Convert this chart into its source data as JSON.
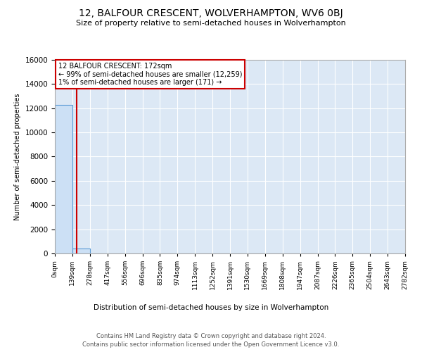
{
  "title": "12, BALFOUR CRESCENT, WOLVERHAMPTON, WV6 0BJ",
  "subtitle": "Size of property relative to semi-detached houses in Wolverhampton",
  "xlabel": "Distribution of semi-detached houses by size in Wolverhampton",
  "ylabel": "Number of semi-detached properties",
  "footer_line1": "Contains HM Land Registry data © Crown copyright and database right 2024.",
  "footer_line2": "Contains public sector information licensed under the Open Government Licence v3.0.",
  "property_size": 172,
  "annotation_title": "12 BALFOUR CRESCENT: 172sqm",
  "annotation_line1": "← 99% of semi-detached houses are smaller (12,259)",
  "annotation_line2": "1% of semi-detached houses are larger (171) →",
  "bin_edges": [
    0,
    139,
    278,
    417,
    556,
    696,
    835,
    974,
    1113,
    1252,
    1391,
    1530,
    1669,
    1808,
    1947,
    2087,
    2226,
    2365,
    2504,
    2643,
    2782
  ],
  "bar_heights": [
    12259,
    430,
    15,
    5,
    2,
    1,
    1,
    0,
    0,
    0,
    0,
    0,
    0,
    0,
    0,
    0,
    0,
    0,
    0,
    0
  ],
  "bar_color": "#cce0f5",
  "bar_edge_color": "#5b9bd5",
  "red_line_color": "#cc0000",
  "annotation_box_color": "#cc0000",
  "background_color": "#dce8f5",
  "ylim": [
    0,
    16000
  ],
  "yticks": [
    0,
    2000,
    4000,
    6000,
    8000,
    10000,
    12000,
    14000,
    16000
  ]
}
